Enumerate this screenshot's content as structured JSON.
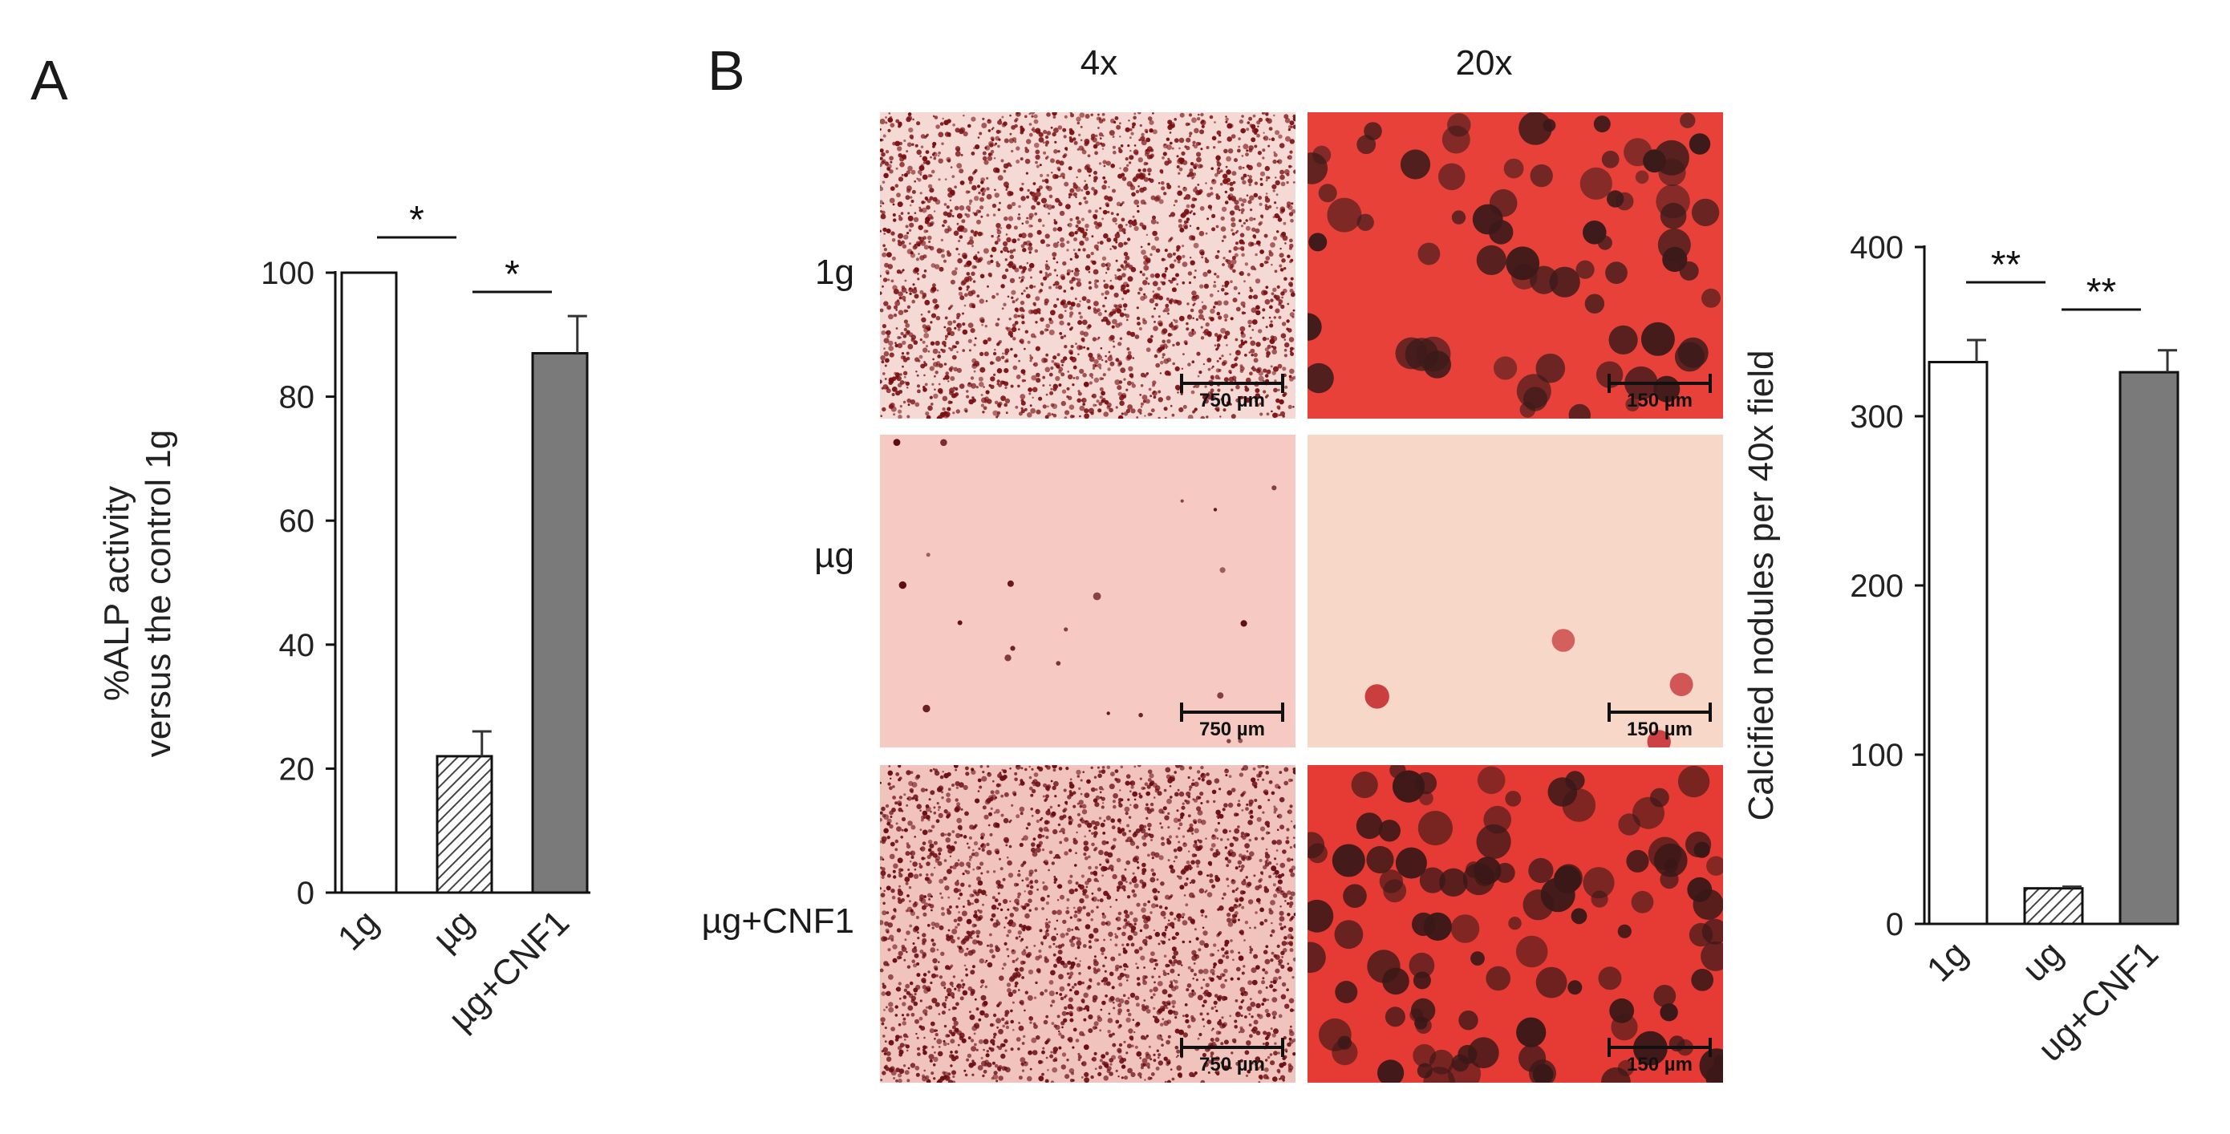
{
  "panel_a_letter": "A",
  "panel_b_letter": "B",
  "micrographs": {
    "col_headers": [
      "4x",
      "20x"
    ],
    "row_labels": [
      "1g",
      "µg",
      "µg+CNF1"
    ],
    "scale_labels": [
      "750 µm",
      "150 µm"
    ]
  },
  "chart_data": [
    {
      "type": "bar",
      "panel": "A",
      "categories": [
        "1g",
        "µg",
        "µg+CNF1"
      ],
      "values": [
        100,
        22,
        87
      ],
      "errors": [
        0,
        4,
        6
      ],
      "ylabel_lines": [
        "%ALP activity",
        "versus the control 1g"
      ],
      "ylim": [
        0,
        100
      ],
      "yticks": [
        "0",
        "20",
        "40",
        "60",
        "80",
        "100"
      ],
      "significance": [
        {
          "between": [
            0,
            1
          ],
          "label": "*"
        },
        {
          "between": [
            1,
            2
          ],
          "label": "*"
        }
      ],
      "bar_colors": [
        "#ffffff",
        "hatched",
        "#7a7a7a"
      ]
    },
    {
      "type": "bar",
      "panel": "B",
      "categories": [
        "1g",
        "ug",
        "ug+CNF1"
      ],
      "values": [
        332,
        21,
        326
      ],
      "errors": [
        13,
        1,
        13
      ],
      "ylabel": "Calcified nodules per 40x field",
      "ylim": [
        0,
        400
      ],
      "yticks": [
        "0",
        "100",
        "200",
        "300",
        "400"
      ],
      "significance": [
        {
          "between": [
            0,
            1
          ],
          "label": "**"
        },
        {
          "between": [
            1,
            2
          ],
          "label": "**"
        }
      ],
      "bar_colors": [
        "#ffffff",
        "hatched",
        "#7a7a7a"
      ]
    }
  ]
}
